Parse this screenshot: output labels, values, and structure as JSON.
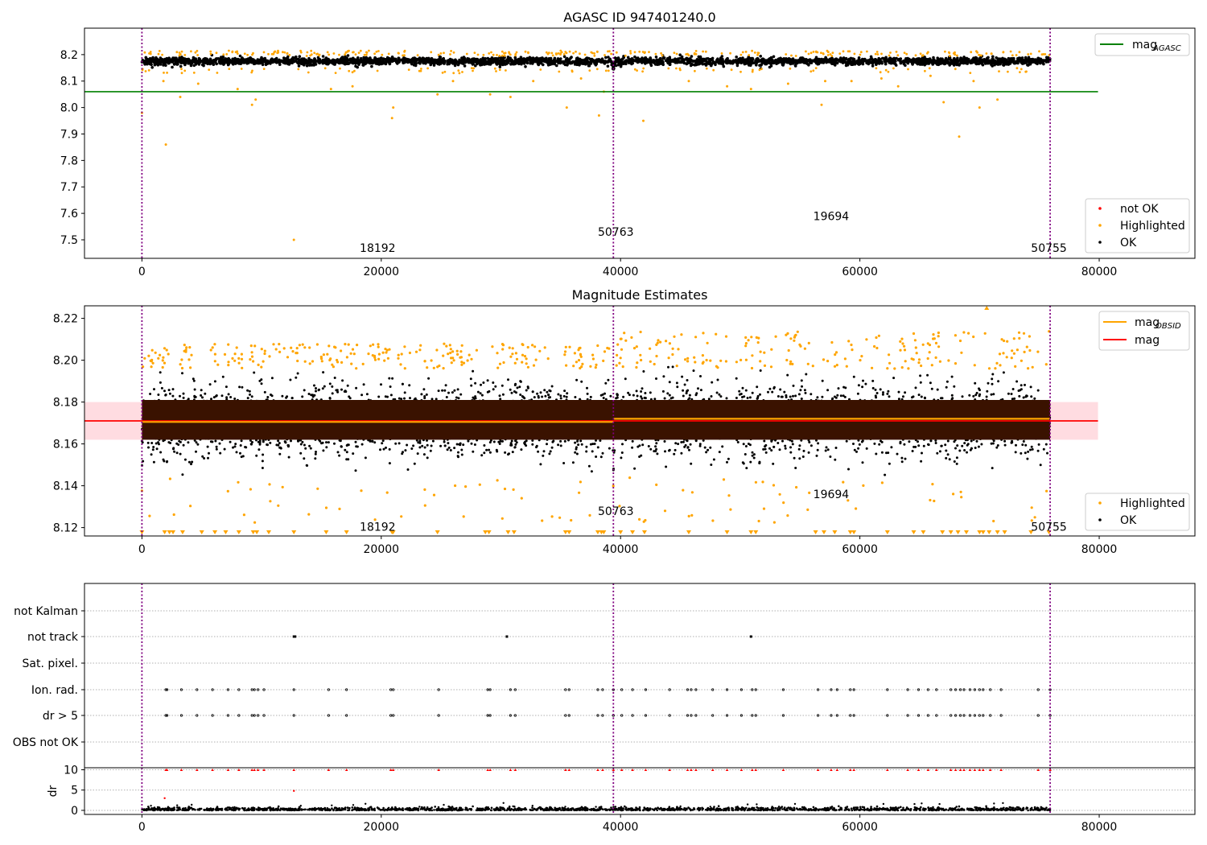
{
  "chart_data": [
    {
      "type": "scatter",
      "title": "AGASC ID 947401240.0",
      "xlim": [
        -4800,
        88000
      ],
      "ylim": [
        7.43,
        8.3
      ],
      "x_ticks": [
        0,
        20000,
        40000,
        60000,
        80000
      ],
      "y_ticks": [
        7.5,
        7.6,
        7.7,
        7.8,
        7.9,
        8.0,
        8.1,
        8.2
      ],
      "y_tick_labels": [
        "7.5",
        "7.6",
        "7.7",
        "7.8",
        "7.9",
        "8.0",
        "8.1",
        "8.2"
      ],
      "x_tick_labels": [
        "0",
        "20000",
        "40000",
        "60000",
        "80000"
      ],
      "vlines": [
        0,
        39400,
        75900
      ],
      "obsid_labels": [
        {
          "x": 19700,
          "y": 7.47,
          "text": "18192"
        },
        {
          "x": 39600,
          "y": 7.53,
          "text": "50763"
        },
        {
          "x": 57600,
          "y": 7.59,
          "text": "19694"
        },
        {
          "x": 75800,
          "y": 7.47,
          "text": "50755"
        }
      ],
      "mag_agasc": 8.06,
      "mag_agasc_xrange": [
        -4800,
        79900
      ],
      "ok_band": {
        "center": 8.175,
        "halfwidth": 0.015,
        "points_per_unit": 0.6
      },
      "highlighted_points": [
        [
          2000,
          7.86
        ],
        [
          12700,
          7.5
        ],
        [
          3200,
          8.04
        ],
        [
          9200,
          8.01
        ],
        [
          9500,
          8.03
        ],
        [
          20900,
          7.96
        ],
        [
          21000,
          8.0
        ],
        [
          24700,
          8.05
        ],
        [
          29100,
          8.05
        ],
        [
          30800,
          8.04
        ],
        [
          35500,
          8.0
        ],
        [
          38200,
          7.97
        ],
        [
          38600,
          8.06
        ],
        [
          41900,
          7.95
        ],
        [
          56800,
          8.01
        ],
        [
          59300,
          8.1
        ],
        [
          63200,
          8.08
        ],
        [
          67000,
          8.02
        ],
        [
          68300,
          7.89
        ],
        [
          69500,
          8.1
        ],
        [
          70000,
          8.0
        ],
        [
          71500,
          8.03
        ],
        [
          50900,
          8.07
        ],
        [
          48900,
          8.08
        ],
        [
          57100,
          8.1
        ],
        [
          45700,
          8.1
        ],
        [
          1800,
          8.1
        ],
        [
          4700,
          8.09
        ],
        [
          8000,
          8.07
        ],
        [
          15800,
          8.07
        ],
        [
          17600,
          8.08
        ],
        [
          26000,
          8.1
        ],
        [
          32700,
          8.1
        ],
        [
          36700,
          8.11
        ],
        [
          54000,
          8.09
        ],
        [
          61800,
          8.11
        ],
        [
          65900,
          8.12
        ],
        [
          0,
          7.98
        ]
      ],
      "series_names": [
        "not OK",
        "Highlighted",
        "OK"
      ],
      "legend_upper": [
        "mag_AGASC"
      ],
      "colors": {
        "ok": "#000000",
        "highlighted": "#ffa500",
        "not_ok": "#ff0000",
        "mag_agasc": "#008000",
        "vline": "#800080"
      }
    },
    {
      "type": "scatter",
      "title": "Magnitude Estimates",
      "xlim": [
        -4800,
        88000
      ],
      "ylim": [
        8.116,
        8.226
      ],
      "x_ticks": [
        0,
        20000,
        40000,
        60000,
        80000
      ],
      "y_ticks": [
        8.12,
        8.14,
        8.16,
        8.18,
        8.2,
        8.22
      ],
      "y_tick_labels": [
        "8.12",
        "8.14",
        "8.16",
        "8.18",
        "8.20",
        "8.22"
      ],
      "x_tick_labels": [
        "0",
        "20000",
        "40000",
        "60000",
        "80000"
      ],
      "vlines": [
        0,
        39400,
        75900
      ],
      "obsid_labels": [
        {
          "x": 19700,
          "y": 8.1205,
          "text": "18192"
        },
        {
          "x": 39600,
          "y": 8.128,
          "text": "50763"
        },
        {
          "x": 57600,
          "y": 8.136,
          "text": "19694"
        },
        {
          "x": 75800,
          "y": 8.1205,
          "text": "50755"
        }
      ],
      "mag": 8.171,
      "mag_band": [
        8.162,
        8.18
      ],
      "mag_xrange": [
        -4800,
        79900
      ],
      "mag_obsid_segments": [
        [
          0,
          39400,
          8.1705
        ],
        [
          39400,
          75900,
          8.172
        ]
      ],
      "dark_band": [
        8.162,
        8.181
      ],
      "ok_spread": 0.018,
      "highlight_top_rate": 0.02,
      "clipped_marker_xs": [
        0,
        1900,
        2300,
        2600,
        3400,
        5000,
        6100,
        7000,
        8100,
        9300,
        9600,
        10600,
        12700,
        15400,
        17100,
        20900,
        21000,
        24700,
        28700,
        29000,
        30600,
        31100,
        35400,
        35700,
        38100,
        38400,
        38600,
        40000,
        41000,
        42000,
        45700,
        48900,
        50900,
        51300,
        56300,
        57000,
        57900,
        59200,
        59500,
        62300,
        64500,
        65300,
        66900,
        67600,
        68200,
        68900,
        70000,
        70300,
        70800,
        71500,
        72100,
        74300,
        75800
      ],
      "series_names": [
        "Highlighted",
        "OK"
      ],
      "legend_upper": [
        "mag_OBSID",
        "mag"
      ],
      "colors": {
        "ok": "#000000",
        "highlighted": "#ffa500",
        "mag_obsid": "#ffa500",
        "mag": "#ff0000",
        "mag_band": "#ffc0c8",
        "band_dark": "#3a1200",
        "vline": "#800080"
      }
    },
    {
      "type": "scatter",
      "title": "",
      "xlim": [
        -4800,
        88000
      ],
      "x_ticks": [
        0,
        20000,
        40000,
        60000,
        80000
      ],
      "x_tick_labels": [
        "0",
        "20000",
        "40000",
        "60000",
        "80000"
      ],
      "vlines": [
        0,
        39400,
        75900
      ],
      "flag_rows": [
        "not Kalman",
        "not track",
        "Sat. pixel.",
        "Ion. rad.",
        "dr > 5",
        "OBS not OK"
      ],
      "not_track_xs": [
        12700,
        12800,
        30500,
        50900
      ],
      "ion_rad_xs": [
        2000,
        2100,
        3300,
        4600,
        5900,
        7200,
        8100,
        9200,
        9400,
        9700,
        10200,
        12700,
        15600,
        17100,
        20800,
        21000,
        24800,
        28900,
        29100,
        30800,
        31200,
        35400,
        35700,
        38100,
        38500,
        39400,
        40100,
        41000,
        42100,
        44100,
        45600,
        45900,
        46300,
        47700,
        48900,
        50100,
        51000,
        51300,
        53600,
        56500,
        57600,
        58100,
        59200,
        59500,
        62300,
        64000,
        64900,
        65700,
        66400,
        67600,
        68000,
        68400,
        68700,
        69200,
        69600,
        70000,
        70300,
        70900,
        71800,
        74900,
        75900
      ],
      "dr_ticks": [
        0,
        5,
        10
      ],
      "dr_ylim": [
        -1,
        10.5
      ],
      "dr_label": "dr",
      "dr_cap_points": [
        [
          1900,
          3
        ],
        [
          12700,
          4.8
        ]
      ],
      "colors": {
        "ok": "#000000",
        "not_ok": "#ff0000",
        "grid": "#b0b0b0",
        "vline": "#800080"
      }
    }
  ],
  "legends": {
    "top_upper": [
      {
        "label_main": "mag",
        "label_sub": "AGASC",
        "color": "#008000"
      }
    ],
    "top_lower": [
      {
        "label": "not OK",
        "color": "#ff0000"
      },
      {
        "label": "Highlighted",
        "color": "#ffa500"
      },
      {
        "label": "OK",
        "color": "#000000"
      }
    ],
    "mid_upper": [
      {
        "label_main": "mag",
        "label_sub": "OBSID",
        "color": "#ffa500"
      },
      {
        "label_main": "mag",
        "label_sub": "",
        "color": "#ff0000"
      }
    ],
    "mid_lower": [
      {
        "label": "Highlighted",
        "color": "#ffa500"
      },
      {
        "label": "OK",
        "color": "#000000"
      }
    ]
  }
}
